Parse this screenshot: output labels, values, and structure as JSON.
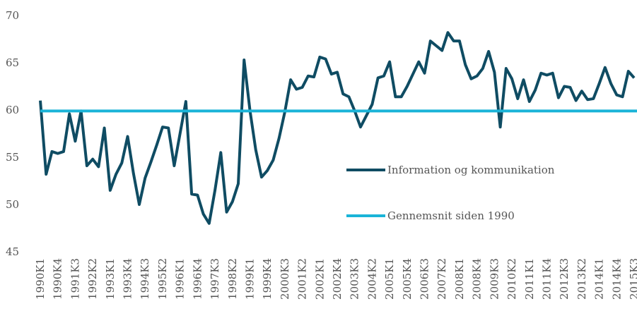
{
  "chart_data": {
    "type": "line",
    "categories": [
      "1990K1",
      null,
      null,
      "1990K4",
      null,
      null,
      "1991K3",
      null,
      null,
      "1992K2",
      null,
      null,
      "1993K1",
      null,
      null,
      "1993K4",
      null,
      null,
      "1994K3",
      null,
      null,
      "1995K2",
      null,
      null,
      "1996K1",
      null,
      null,
      "1996K4",
      null,
      null,
      "1997K3",
      null,
      null,
      "1998K2",
      null,
      null,
      "1999K1",
      null,
      null,
      "1999K4",
      null,
      null,
      "2000K3",
      null,
      null,
      "2001K2",
      null,
      null,
      "2002K1",
      null,
      null,
      "2002K4",
      null,
      null,
      "2003K3",
      null,
      null,
      "2004K2",
      null,
      null,
      "2005K1",
      null,
      null,
      "2005K4",
      null,
      null,
      "2006K3",
      null,
      null,
      "2007K2",
      null,
      null,
      "2008K1",
      null,
      null,
      "2008K4",
      null,
      null,
      "2009K3",
      null,
      null,
      "2010K2",
      null,
      null,
      "2011K1",
      null,
      null,
      "2011K4",
      null,
      null,
      "2012K3",
      null,
      null,
      "2013K2",
      null,
      null,
      "2014K1",
      null,
      null,
      "2014K4",
      null,
      null,
      "2015K3"
    ],
    "series": [
      {
        "name": "Information og kommunikation",
        "color": "#0f4c63",
        "values": [
          61.0,
          53.2,
          55.6,
          55.4,
          55.6,
          59.6,
          56.7,
          59.9,
          54.1,
          54.8,
          54.0,
          58.1,
          51.5,
          53.2,
          54.4,
          57.2,
          53.3,
          50.0,
          52.8,
          54.5,
          56.3,
          58.2,
          58.1,
          54.1,
          57.5,
          60.9,
          51.1,
          51.0,
          49.0,
          48.0,
          51.5,
          55.5,
          49.2,
          50.3,
          52.2,
          65.3,
          60.0,
          55.8,
          52.9,
          53.6,
          54.7,
          57.0,
          59.8,
          63.2,
          62.2,
          62.4,
          63.6,
          63.5,
          65.6,
          65.4,
          63.8,
          64.0,
          61.7,
          61.4,
          59.9,
          58.2,
          59.4,
          60.6,
          63.4,
          63.6,
          65.1,
          61.4,
          61.4,
          62.5,
          63.8,
          65.1,
          63.9,
          67.3,
          66.8,
          66.3,
          68.2,
          67.3,
          67.3,
          64.8,
          63.3,
          63.6,
          64.4,
          66.2,
          64.0,
          58.2,
          64.4,
          63.3,
          61.2,
          63.2,
          60.9,
          62.1,
          63.9,
          63.7,
          63.9,
          61.3,
          62.5,
          62.4,
          61.0,
          62.0,
          61.1,
          61.2,
          62.8,
          64.5,
          62.8,
          61.6,
          61.4,
          64.1,
          63.4
        ]
      },
      {
        "name": "Gennemsnit siden 1990",
        "color": "#1ab4d8",
        "value": 59.9
      }
    ],
    "ylim": [
      45,
      70
    ],
    "yticks": [
      45,
      50,
      55,
      60,
      65,
      70
    ]
  }
}
